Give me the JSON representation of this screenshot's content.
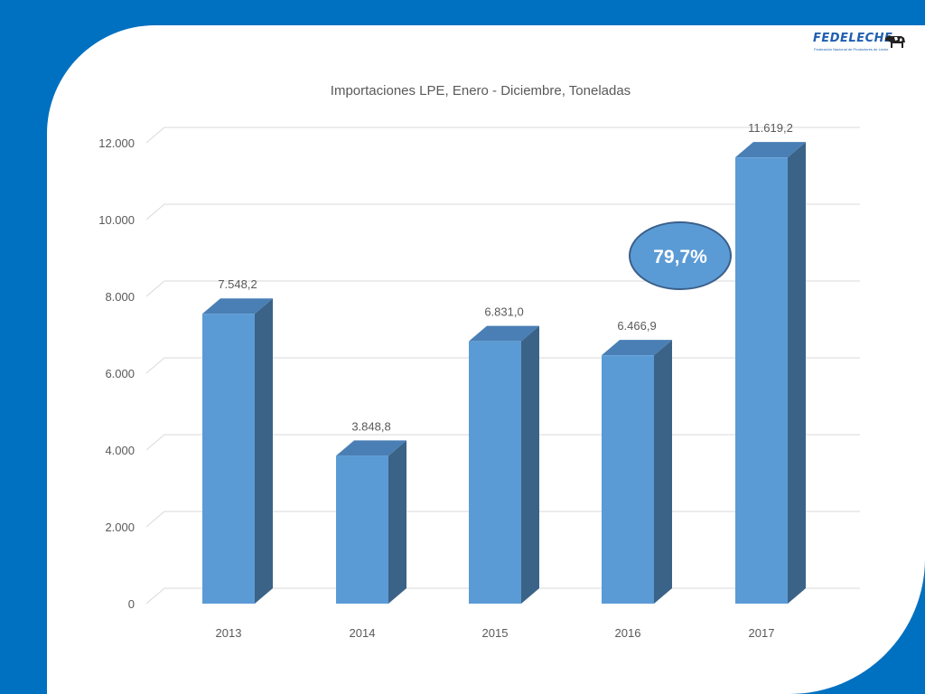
{
  "logo": {
    "brand_text": "FEDELECHE",
    "tagline": "Federación Nacional de Productores de Leche"
  },
  "chart_data": {
    "type": "bar",
    "title": "Importaciones LPE, Enero - Diciembre, Toneladas",
    "categories": [
      "2013",
      "2014",
      "2015",
      "2016",
      "2017"
    ],
    "values": [
      7548.2,
      3848.8,
      6831.0,
      6466.9,
      11619.2
    ],
    "data_labels": [
      "7.548,2",
      "3.848,8",
      "6.831,0",
      "6.466,9",
      "11.619,2"
    ],
    "yticks": [
      0,
      2000,
      4000,
      6000,
      8000,
      10000,
      12000
    ],
    "ytick_labels": [
      "0",
      "2.000",
      "4.000",
      "6.000",
      "8.000",
      "10.000",
      "12.000"
    ],
    "ylim": [
      0,
      12000
    ],
    "grid": true,
    "annotation": {
      "text": "79,7%"
    },
    "colors": {
      "bar_front": "#5b9bd5",
      "bar_top": "#4a7fb5",
      "bar_side": "#3b6388",
      "grid": "#d9d9d9",
      "text": "#595959",
      "annotation_fill": "#5b9bd5",
      "annotation_border": "#3a5f8a"
    }
  }
}
